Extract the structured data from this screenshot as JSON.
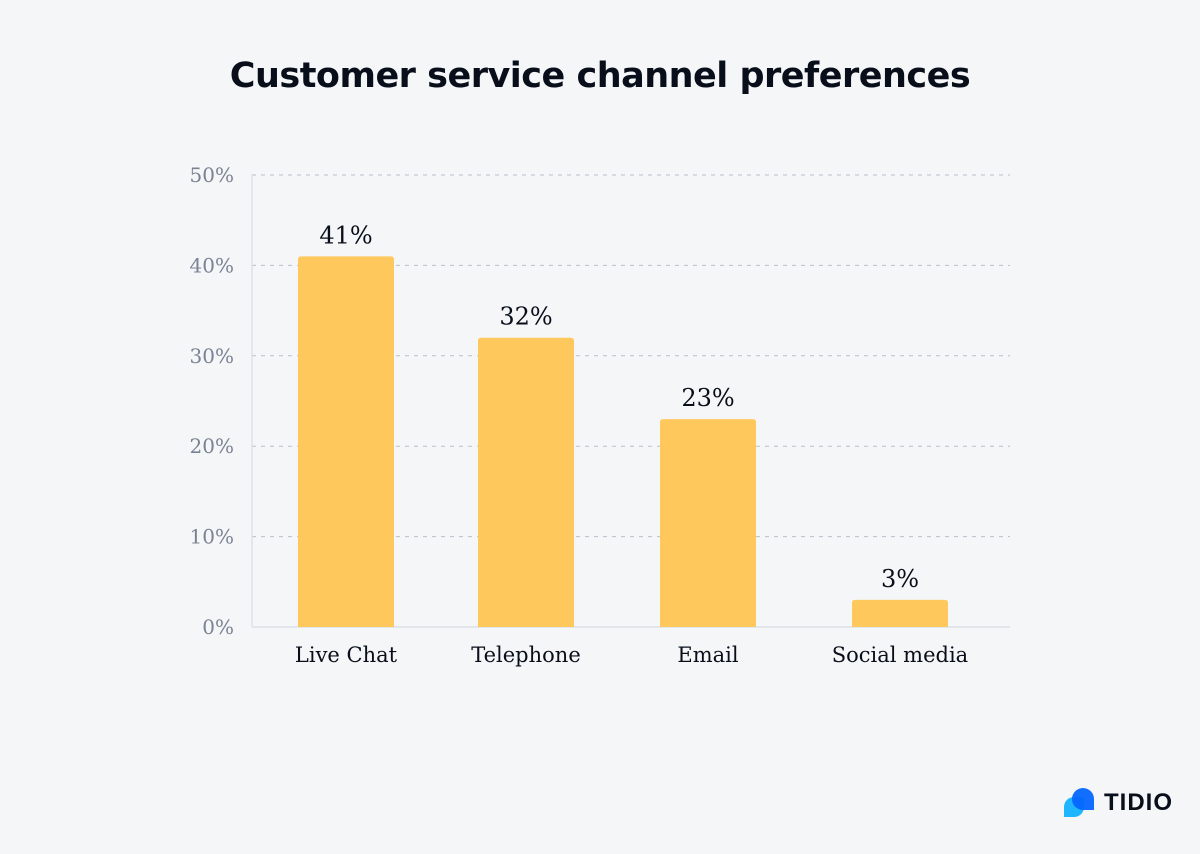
{
  "chart_data": {
    "type": "bar",
    "title": "Customer service channel preferences",
    "categories": [
      "Live Chat",
      "Telephone",
      "Email",
      "Social media"
    ],
    "values": [
      41,
      32,
      23,
      3
    ],
    "data_labels": [
      "41%",
      "32%",
      "23%",
      "3%"
    ],
    "xlabel": "",
    "ylabel": "",
    "ylim": [
      0,
      50
    ],
    "yticks": [
      0,
      10,
      20,
      30,
      40,
      50
    ],
    "ytick_labels": [
      "0%",
      "10%",
      "20%",
      "30%",
      "40%",
      "50%"
    ],
    "grid": true,
    "legend": "none",
    "colors": {
      "bar": "#ffc85c",
      "grid": "#b9bec8",
      "axis_text": "#7a8294",
      "label_text": "#080f1a"
    }
  },
  "brand": {
    "name": "TIDIO",
    "colors": [
      "#0566ff",
      "#1fb5ff"
    ]
  }
}
